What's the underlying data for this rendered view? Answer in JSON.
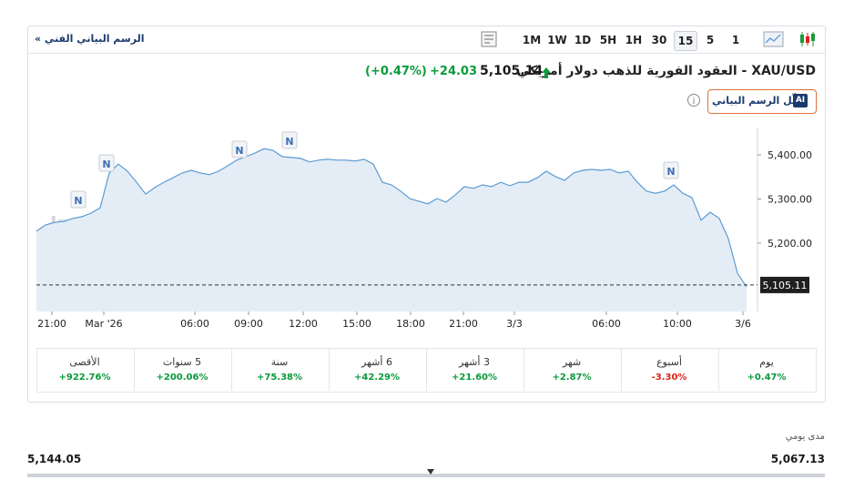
{
  "toolbar": {
    "technical_link": "الرسم البياني الفني »",
    "intervals": [
      "1",
      "5",
      "15",
      "30",
      "1H",
      "5H",
      "1D",
      "1W",
      "1M"
    ],
    "selected_interval": "15"
  },
  "quote": {
    "title": "XAU/USD - العقود الفورية للذهب دولار أمريكي",
    "price": "5,105.14",
    "change": "+24.03",
    "change_percent": "(+0.47%)"
  },
  "ai_button": {
    "badge": "AI",
    "label": "حلّل الرسم البياني"
  },
  "chart_data": {
    "type": "line",
    "color": "#5b9bd5",
    "fill": "#e4edf6",
    "watermark": "Investing.com",
    "values": [
      5227,
      5241,
      5247,
      5249,
      5256,
      5260,
      5268,
      5280,
      5359,
      5379,
      5363,
      5338,
      5311,
      5326,
      5338,
      5348,
      5359,
      5365,
      5359,
      5355,
      5363,
      5375,
      5388,
      5396,
      5404,
      5414,
      5410,
      5396,
      5394,
      5392,
      5384,
      5388,
      5390,
      5388,
      5388,
      5386,
      5390,
      5379,
      5338,
      5332,
      5318,
      5301,
      5295,
      5289,
      5301,
      5293,
      5309,
      5328,
      5324,
      5332,
      5328,
      5338,
      5330,
      5338,
      5338,
      5348,
      5363,
      5351,
      5342,
      5359,
      5365,
      5367,
      5365,
      5367,
      5359,
      5363,
      5338,
      5318,
      5313,
      5318,
      5332,
      5313,
      5303,
      5252,
      5270,
      5256,
      5210,
      5132,
      5101
    ],
    "xlim": [
      0,
      78
    ],
    "xticks": [
      {
        "value": 1.7,
        "label": "21:00"
      },
      {
        "value": 7.4,
        "label": "Mar '26"
      },
      {
        "value": 17.4,
        "label": "06:00"
      },
      {
        "value": 23.3,
        "label": "09:00"
      },
      {
        "value": 29.3,
        "label": "12:00"
      },
      {
        "value": 35.2,
        "label": "15:00"
      },
      {
        "value": 41.1,
        "label": "18:00"
      },
      {
        "value": 46.9,
        "label": "21:00"
      },
      {
        "value": 52.5,
        "label": "3/3"
      },
      {
        "value": 62.6,
        "label": "06:00"
      },
      {
        "value": 70.4,
        "label": "10:00"
      },
      {
        "value": 77.6,
        "label": "3/6"
      }
    ],
    "ylim": [
      5045,
      5462
    ],
    "yticks": [
      {
        "value": 5200,
        "label": "5,200.00"
      },
      {
        "value": 5300,
        "label": "5,300.00"
      },
      {
        "value": 5400,
        "label": "5,400.00"
      }
    ],
    "last_price": {
      "value": 5105.11,
      "label": "5,105.11"
    },
    "news_markers": [
      "N",
      "N",
      "N",
      "N",
      "N"
    ]
  },
  "periods": [
    {
      "label": "يوم",
      "change": "+0.47%"
    },
    {
      "label": "أسبوع",
      "change": "-3.30%"
    },
    {
      "label": "شهر",
      "change": "+2.87%"
    },
    {
      "label": "3 أشهر",
      "change": "+21.60%"
    },
    {
      "label": "6 أشهر",
      "change": "+42.29%"
    },
    {
      "label": "سنة",
      "change": "+75.38%"
    },
    {
      "label": "5 سنوات",
      "change": "+200.06%"
    },
    {
      "label": "الأقصى",
      "change": "+922.76%"
    }
  ],
  "daily_range": {
    "label": "مدى يومي",
    "low": "5,067.13",
    "high": "5,144.05"
  }
}
